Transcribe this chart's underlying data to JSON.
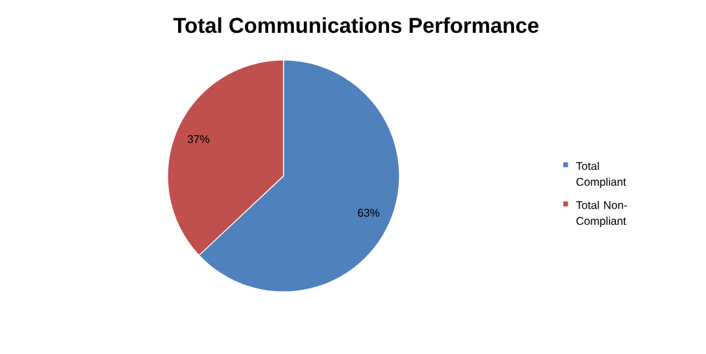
{
  "chart_data": {
    "type": "pie",
    "title": "Total Communications Performance",
    "categories": [
      "Total Compliant",
      "Total Non-Compliant"
    ],
    "values": [
      63,
      37
    ],
    "value_labels": [
      "63%",
      "37%"
    ],
    "colors": [
      "#4f81bd",
      "#c0504d"
    ],
    "legend": "right"
  }
}
